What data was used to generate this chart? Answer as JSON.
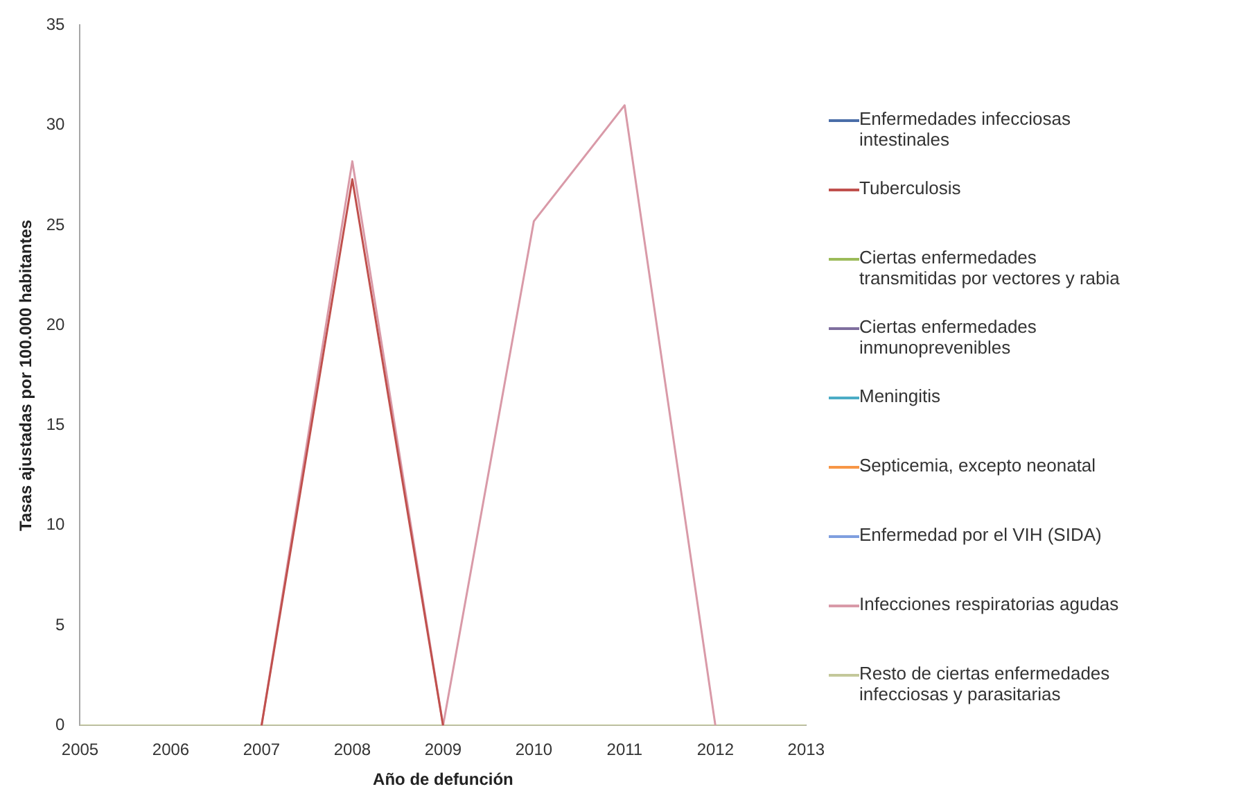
{
  "chart_data": {
    "type": "line",
    "xlabel": "Año de defunción",
    "ylabel": "Tasas ajustadas por 100.000 habitantes",
    "categories": [
      "2005",
      "2006",
      "2007",
      "2008",
      "2009",
      "2010",
      "2011",
      "2012",
      "2013"
    ],
    "ylim": [
      0,
      35
    ],
    "yticks": [
      0,
      5,
      10,
      15,
      20,
      25,
      30,
      35
    ],
    "grid": false,
    "legend": "right",
    "marker": "none",
    "series": [
      {
        "name": "Enfermedades infecciosas intestinales",
        "color": "#4a6ea8",
        "values": [
          null,
          null,
          null,
          null,
          null,
          null,
          null,
          null,
          null
        ]
      },
      {
        "name": "Tuberculosis",
        "color": "#c0504d",
        "values": [
          null,
          null,
          0,
          27.3,
          0,
          null,
          null,
          null,
          null
        ]
      },
      {
        "name": "Ciertas enfermedades transmitidas por vectores y rabia",
        "color": "#9bbb59",
        "values": [
          null,
          null,
          null,
          null,
          null,
          null,
          null,
          null,
          null
        ]
      },
      {
        "name": "Ciertas enfermedades inmunoprevenibles",
        "color": "#7f6f9f",
        "values": [
          null,
          null,
          null,
          null,
          null,
          null,
          null,
          null,
          null
        ]
      },
      {
        "name": "Meningitis",
        "color": "#4bacc6",
        "values": [
          null,
          null,
          null,
          null,
          null,
          null,
          null,
          null,
          null
        ]
      },
      {
        "name": "Septicemia, excepto neonatal",
        "color": "#f79646",
        "values": [
          null,
          null,
          null,
          null,
          null,
          null,
          null,
          null,
          null
        ]
      },
      {
        "name": "Enfermedad por el VIH (SIDA)",
        "color": "#7f9fdf",
        "values": [
          null,
          null,
          null,
          null,
          null,
          null,
          null,
          null,
          null
        ]
      },
      {
        "name": "Infecciones respiratorias agudas",
        "color": "#d99aa8",
        "values": [
          null,
          null,
          0,
          28.2,
          0,
          25.2,
          31,
          0,
          null
        ]
      },
      {
        "name": "Resto de ciertas enfermedades infecciosas y parasitarias",
        "color": "#c4c89a",
        "values": [
          0,
          0,
          0,
          0,
          0,
          0,
          0,
          0,
          0
        ]
      }
    ]
  }
}
